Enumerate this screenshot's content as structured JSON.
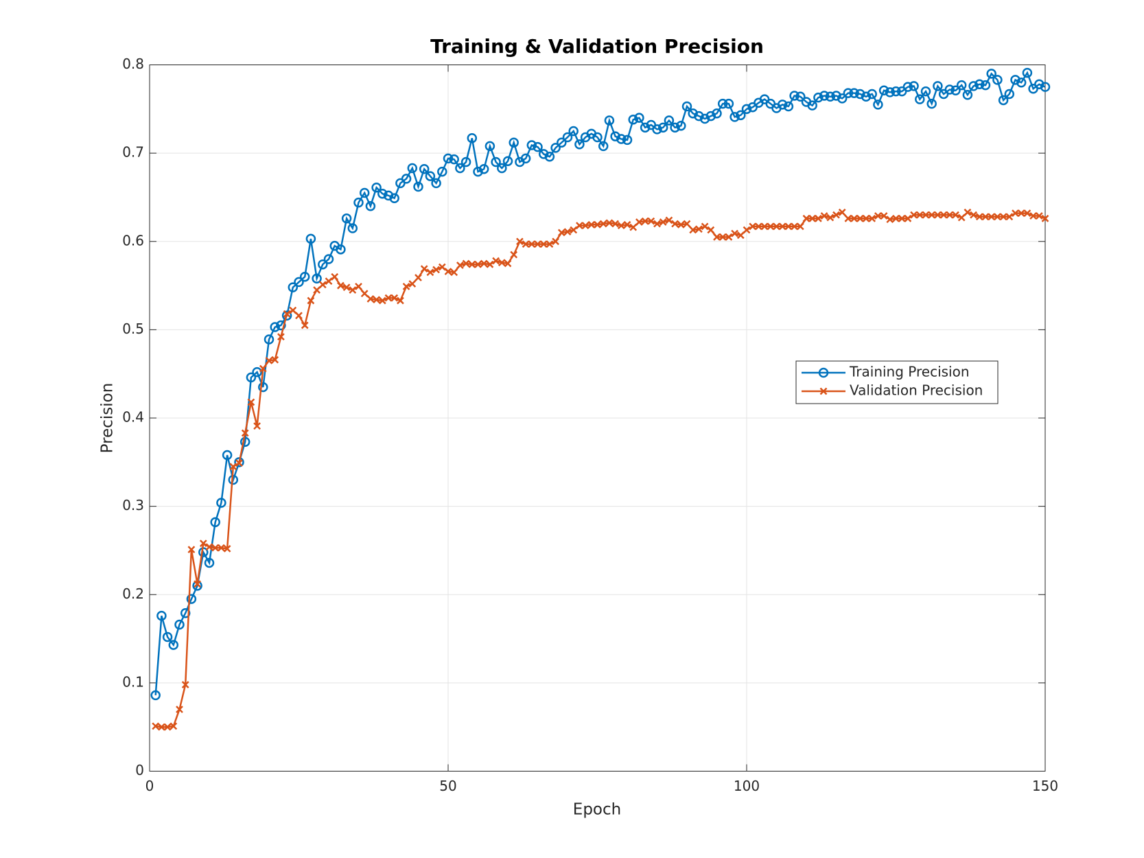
{
  "chart_data": {
    "type": "line",
    "title": "Training & Validation Precision",
    "xlabel": "Epoch",
    "ylabel": "Precision",
    "x": [
      1,
      2,
      3,
      4,
      5,
      6,
      7,
      8,
      9,
      10,
      11,
      12,
      13,
      14,
      15,
      16,
      17,
      18,
      19,
      20,
      21,
      22,
      23,
      24,
      25,
      26,
      27,
      28,
      29,
      30,
      31,
      32,
      33,
      34,
      35,
      36,
      37,
      38,
      39,
      40,
      41,
      42,
      43,
      44,
      45,
      46,
      47,
      48,
      49,
      50,
      51,
      52,
      53,
      54,
      55,
      56,
      57,
      58,
      59,
      60,
      61,
      62,
      63,
      64,
      65,
      66,
      67,
      68,
      69,
      70,
      71,
      72,
      73,
      74,
      75,
      76,
      77,
      78,
      79,
      80,
      81,
      82,
      83,
      84,
      85,
      86,
      87,
      88,
      89,
      90,
      91,
      92,
      93,
      94,
      95,
      96,
      97,
      98,
      99,
      100,
      101,
      102,
      103,
      104,
      105,
      106,
      107,
      108,
      109,
      110,
      111,
      112,
      113,
      114,
      115,
      116,
      117,
      118,
      119,
      120,
      121,
      122,
      123,
      124,
      125,
      126,
      127,
      128,
      129,
      130,
      131,
      132,
      133,
      134,
      135,
      136,
      137,
      138,
      139,
      140,
      141,
      142,
      143,
      144,
      145,
      146,
      147,
      148,
      149,
      150
    ],
    "series": [
      {
        "name": "Training Precision",
        "color": "#0072bd",
        "marker": "o",
        "values": [
          0.086,
          0.176,
          0.152,
          0.143,
          0.166,
          0.179,
          0.195,
          0.21,
          0.248,
          0.236,
          0.282,
          0.304,
          0.358,
          0.33,
          0.35,
          0.373,
          0.446,
          0.452,
          0.435,
          0.489,
          0.503,
          0.505,
          0.516,
          0.548,
          0.554,
          0.56,
          0.603,
          0.558,
          0.574,
          0.58,
          0.595,
          0.591,
          0.626,
          0.615,
          0.644,
          0.655,
          0.64,
          0.661,
          0.654,
          0.652,
          0.649,
          0.666,
          0.671,
          0.683,
          0.662,
          0.682,
          0.674,
          0.666,
          0.679,
          0.694,
          0.693,
          0.683,
          0.69,
          0.717,
          0.679,
          0.682,
          0.708,
          0.69,
          0.683,
          0.691,
          0.712,
          0.69,
          0.694,
          0.709,
          0.707,
          0.699,
          0.696,
          0.706,
          0.712,
          0.718,
          0.725,
          0.71,
          0.718,
          0.722,
          0.718,
          0.708,
          0.737,
          0.719,
          0.716,
          0.715,
          0.738,
          0.74,
          0.729,
          0.732,
          0.727,
          0.729,
          0.737,
          0.729,
          0.731,
          0.753,
          0.745,
          0.742,
          0.739,
          0.742,
          0.745,
          0.756,
          0.756,
          0.741,
          0.743,
          0.75,
          0.752,
          0.757,
          0.761,
          0.756,
          0.751,
          0.755,
          0.753,
          0.765,
          0.764,
          0.758,
          0.754,
          0.763,
          0.765,
          0.764,
          0.765,
          0.762,
          0.768,
          0.768,
          0.767,
          0.764,
          0.767,
          0.755,
          0.771,
          0.769,
          0.77,
          0.77,
          0.775,
          0.776,
          0.761,
          0.77,
          0.756,
          0.776,
          0.767,
          0.772,
          0.771,
          0.777,
          0.766,
          0.776,
          0.778,
          0.777,
          0.79,
          0.783,
          0.76,
          0.767,
          0.783,
          0.78,
          0.791,
          0.773,
          0.778,
          0.775
        ]
      },
      {
        "name": "Validation Precision",
        "color": "#d95319",
        "marker": "x",
        "values": [
          0.051,
          0.05,
          0.05,
          0.051,
          0.07,
          0.098,
          0.251,
          0.212,
          0.258,
          0.254,
          0.253,
          0.253,
          0.252,
          0.345,
          0.349,
          0.383,
          0.418,
          0.391,
          0.456,
          0.465,
          0.466,
          0.492,
          0.518,
          0.522,
          0.516,
          0.505,
          0.533,
          0.545,
          0.551,
          0.555,
          0.56,
          0.55,
          0.548,
          0.545,
          0.549,
          0.541,
          0.535,
          0.534,
          0.533,
          0.536,
          0.536,
          0.533,
          0.549,
          0.552,
          0.559,
          0.569,
          0.565,
          0.568,
          0.571,
          0.566,
          0.565,
          0.573,
          0.575,
          0.574,
          0.574,
          0.575,
          0.574,
          0.578,
          0.576,
          0.575,
          0.585,
          0.6,
          0.597,
          0.597,
          0.597,
          0.597,
          0.597,
          0.6,
          0.61,
          0.611,
          0.613,
          0.618,
          0.618,
          0.619,
          0.619,
          0.62,
          0.621,
          0.62,
          0.618,
          0.619,
          0.616,
          0.622,
          0.623,
          0.623,
          0.62,
          0.622,
          0.624,
          0.62,
          0.619,
          0.62,
          0.613,
          0.614,
          0.617,
          0.613,
          0.605,
          0.605,
          0.605,
          0.609,
          0.607,
          0.613,
          0.617,
          0.617,
          0.617,
          0.617,
          0.617,
          0.617,
          0.617,
          0.617,
          0.617,
          0.626,
          0.626,
          0.626,
          0.629,
          0.627,
          0.63,
          0.633,
          0.626,
          0.626,
          0.626,
          0.626,
          0.626,
          0.629,
          0.629,
          0.625,
          0.626,
          0.626,
          0.626,
          0.63,
          0.63,
          0.63,
          0.63,
          0.63,
          0.63,
          0.63,
          0.63,
          0.627,
          0.633,
          0.63,
          0.628,
          0.628,
          0.628,
          0.628,
          0.628,
          0.628,
          0.632,
          0.632,
          0.632,
          0.629,
          0.629,
          0.626
        ]
      }
    ],
    "xlim": [
      0,
      150
    ],
    "xticks": [
      0,
      50,
      100,
      150
    ],
    "ylim": [
      0,
      0.8
    ],
    "yticks": [
      0,
      0.1,
      0.2,
      0.3,
      0.4,
      0.5,
      0.6,
      0.7,
      0.8
    ],
    "grid": true,
    "legend_location": "east"
  }
}
